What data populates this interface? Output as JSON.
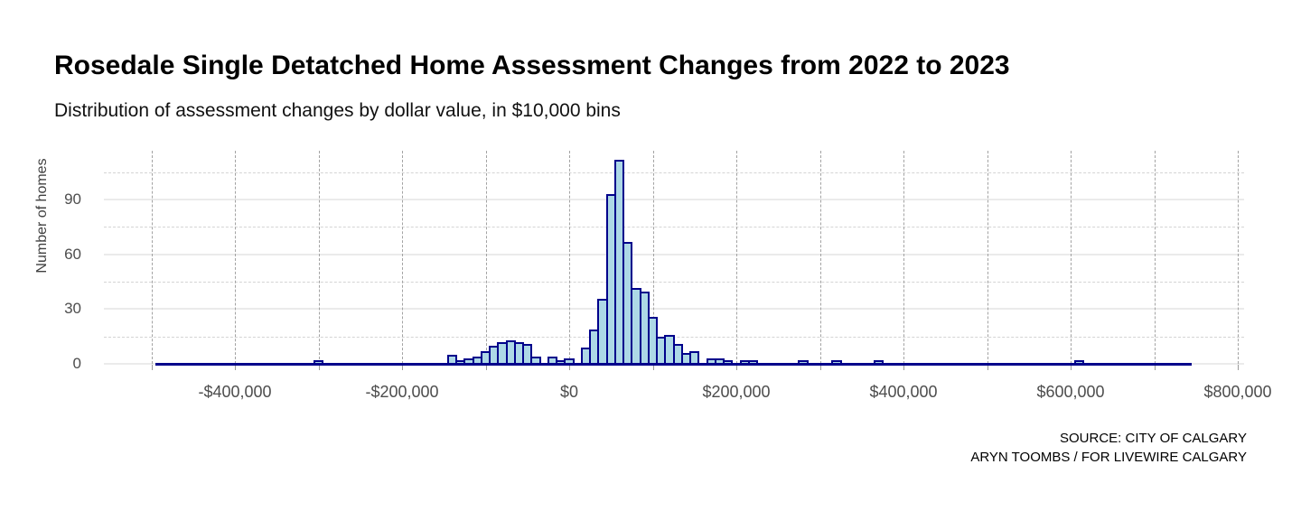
{
  "header": {
    "title": "Rosedale Single Detatched Home Assessment Changes from 2022 to 2023",
    "subtitle": "Distribution of assessment changes by dollar value, in $10,000 bins"
  },
  "footer": {
    "source_line1": "SOURCE: CITY OF CALGARY",
    "source_line2": "ARYN TOOMBS / FOR LIVEWIRE CALGARY"
  },
  "chart_data": {
    "type": "bar",
    "subtype": "histogram",
    "title": "Rosedale Single Detatched Home Assessment Changes from 2022 to 2023",
    "subtitle": "Distribution of assessment changes by dollar value, in $10,000 bins",
    "xlabel": "",
    "ylabel": "Number of homes",
    "bin_width": 10000,
    "bins_note": "pairs of [bin center in dollars, number of homes]; all other bins between -495000 and 745000 have count 0",
    "bins": [
      [
        -300000,
        1
      ],
      [
        -140000,
        4
      ],
      [
        -130000,
        1
      ],
      [
        -120000,
        2
      ],
      [
        -110000,
        3
      ],
      [
        -100000,
        6
      ],
      [
        -90000,
        9
      ],
      [
        -80000,
        11
      ],
      [
        -70000,
        12
      ],
      [
        -60000,
        11
      ],
      [
        -50000,
        10
      ],
      [
        -40000,
        3
      ],
      [
        -20000,
        3
      ],
      [
        -10000,
        1
      ],
      [
        0,
        2
      ],
      [
        20000,
        8
      ],
      [
        30000,
        18
      ],
      [
        40000,
        35
      ],
      [
        50000,
        92
      ],
      [
        60000,
        111
      ],
      [
        70000,
        66
      ],
      [
        80000,
        41
      ],
      [
        90000,
        39
      ],
      [
        100000,
        25
      ],
      [
        110000,
        14
      ],
      [
        120000,
        15
      ],
      [
        130000,
        10
      ],
      [
        140000,
        5
      ],
      [
        150000,
        6
      ],
      [
        170000,
        2
      ],
      [
        180000,
        2
      ],
      [
        190000,
        1
      ],
      [
        210000,
        1
      ],
      [
        220000,
        1
      ],
      [
        280000,
        1
      ],
      [
        320000,
        1
      ],
      [
        370000,
        1
      ],
      [
        610000,
        1
      ]
    ],
    "zero_bar_span": [
      -495000,
      745000
    ],
    "x_tick_values": [
      -400000,
      -200000,
      0,
      200000,
      400000,
      600000,
      800000
    ],
    "x_tick_labels": [
      "-$400,000",
      "-$200,000",
      "$0",
      "$200,000",
      "$400,000",
      "$600,000",
      "$800,000"
    ],
    "x_minor_step": 100000,
    "x_grid_range": [
      -500000,
      800000
    ],
    "y_tick_values": [
      0,
      30,
      60,
      90
    ],
    "y_minor_values": [
      15,
      45,
      75,
      105
    ],
    "ylim": [
      0,
      116
    ],
    "grid": "horizontal solid major, dashed minor; vertical dashed",
    "legend": "none",
    "colors": {
      "bar_fill": "#ADD8E6",
      "bar_stroke": "#00008B",
      "grid_major": "#ebebeb",
      "grid_minor_dash": "#d4d4d4",
      "grid_vertical_dash": "#a3a3a3",
      "axis_text": "#4d4d4d",
      "title_text": "#000000"
    }
  }
}
